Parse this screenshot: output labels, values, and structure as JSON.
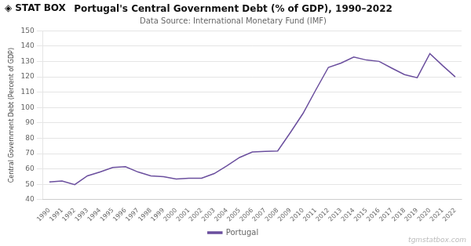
{
  "chart_data": {
    "type": "line",
    "title": "Portugal's Central Government Debt (% of GDP), 1990–2022",
    "subtitle": "Data Source: International Monetary Fund (IMF)",
    "y_label": "Central Government Debt (Percent of GDP)",
    "annotations": [
      "◈",
      "STAT",
      "BOX",
      "tgmstatbox.com"
    ],
    "x": [
      1990,
      1991,
      1992,
      1993,
      1994,
      1995,
      1996,
      1997,
      1998,
      1999,
      2000,
      2001,
      2002,
      2003,
      2004,
      2005,
      2006,
      2007,
      2008,
      2009,
      2010,
      2011,
      2012,
      2013,
      2014,
      2015,
      2016,
      2017,
      2018,
      2019,
      2020,
      2021,
      2022
    ],
    "series": [
      {
        "name": "Portugal",
        "color": "#6B4F9E",
        "values": [
          51.5,
          52.2,
          49.8,
          55.5,
          58.0,
          61.0,
          61.5,
          58.0,
          55.5,
          55.0,
          53.5,
          54.0,
          54.0,
          57.0,
          62.0,
          67.5,
          71.0,
          71.5,
          71.7,
          83.7,
          96.2,
          111.4,
          126.2,
          129.0,
          132.9,
          131.0,
          130.1,
          125.7,
          121.5,
          119.5,
          135.2,
          127.4,
          120.0
        ]
      }
    ],
    "xlim": [
      1989.5,
      2022.5
    ],
    "xticks": [
      1990,
      1991,
      1992,
      1993,
      1994,
      1995,
      1996,
      1997,
      1998,
      1999,
      2000,
      2001,
      2002,
      2003,
      2004,
      2005,
      2006,
      2007,
      2008,
      2009,
      2010,
      2011,
      2012,
      2013,
      2014,
      2015,
      2016,
      2017,
      2018,
      2019,
      2020,
      2021,
      2022
    ],
    "ylim": [
      40,
      150
    ],
    "yticks": [
      40,
      50,
      60,
      70,
      80,
      90,
      100,
      110,
      120,
      130,
      140,
      150
    ],
    "grid": true,
    "legend": "bottom"
  }
}
